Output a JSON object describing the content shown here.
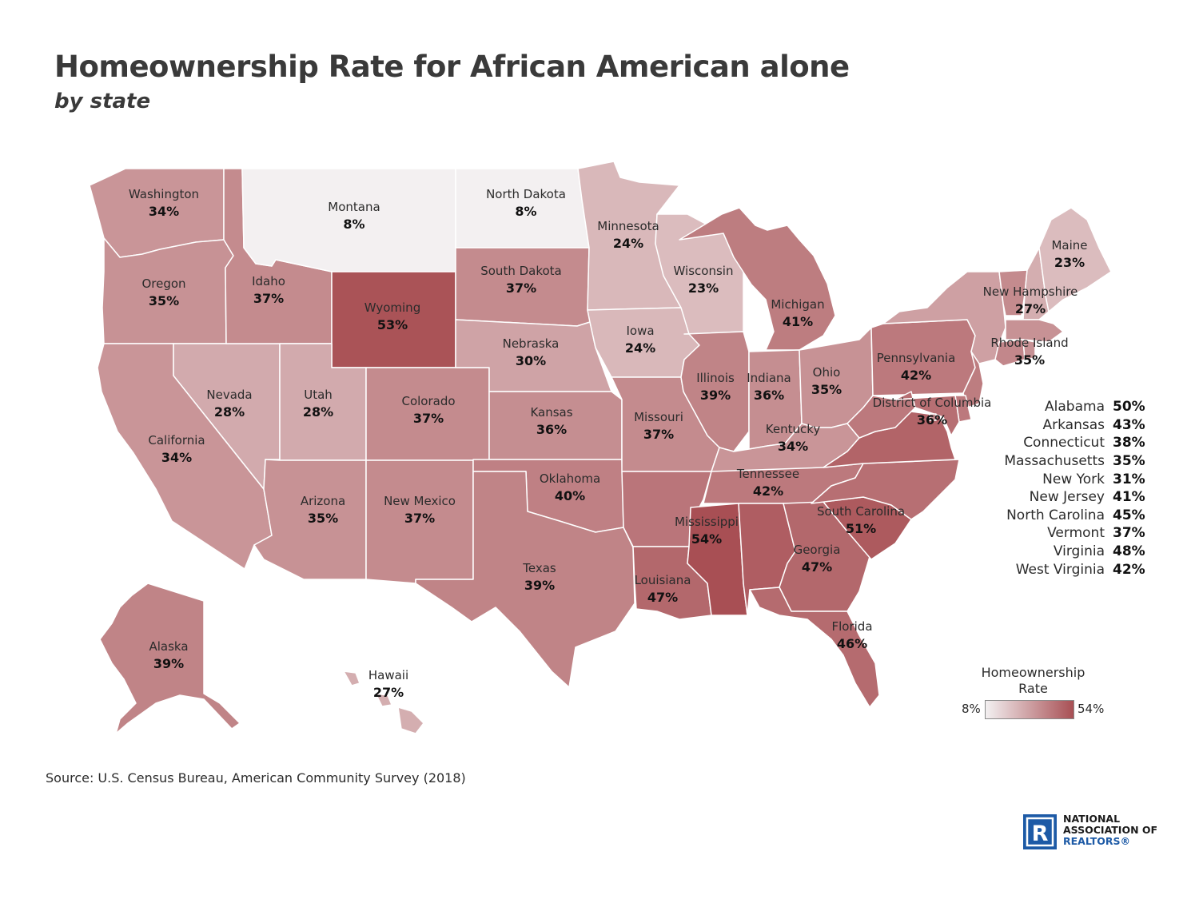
{
  "title": "Homeownership Rate for African American alone",
  "subtitle": "by state",
  "legend": {
    "title": "Homeownership Rate",
    "min_label": "8%",
    "max_label": "54%",
    "min": 8,
    "max": 54,
    "color_low": "#f3f0f1",
    "color_high": "#a84f54"
  },
  "states": {
    "WA": {
      "name": "Washington",
      "value": 34,
      "label": "34%"
    },
    "OR": {
      "name": "Oregon",
      "value": 35,
      "label": "35%"
    },
    "CA": {
      "name": "California",
      "value": 34,
      "label": "34%"
    },
    "NV": {
      "name": "Nevada",
      "value": 28,
      "label": "28%"
    },
    "ID": {
      "name": "Idaho",
      "value": 37,
      "label": "37%"
    },
    "MT": {
      "name": "Montana",
      "value": 8,
      "label": "8%"
    },
    "WY": {
      "name": "Wyoming",
      "value": 53,
      "label": "53%"
    },
    "UT": {
      "name": "Utah",
      "value": 28,
      "label": "28%"
    },
    "AZ": {
      "name": "Arizona",
      "value": 35,
      "label": "35%"
    },
    "CO": {
      "name": "Colorado",
      "value": 37,
      "label": "37%"
    },
    "NM": {
      "name": "New Mexico",
      "value": 37,
      "label": "37%"
    },
    "ND": {
      "name": "North Dakota",
      "value": 8,
      "label": "8%"
    },
    "SD": {
      "name": "South Dakota",
      "value": 37,
      "label": "37%"
    },
    "NE": {
      "name": "Nebraska",
      "value": 30,
      "label": "30%"
    },
    "KS": {
      "name": "Kansas",
      "value": 36,
      "label": "36%"
    },
    "OK": {
      "name": "Oklahoma",
      "value": 40,
      "label": "40%"
    },
    "TX": {
      "name": "Texas",
      "value": 39,
      "label": "39%"
    },
    "MN": {
      "name": "Minnesota",
      "value": 24,
      "label": "24%"
    },
    "IA": {
      "name": "Iowa",
      "value": 24,
      "label": "24%"
    },
    "MO": {
      "name": "Missouri",
      "value": 37,
      "label": "37%"
    },
    "AR": {
      "name": "Arkansas",
      "value": 43,
      "label": "43%"
    },
    "LA": {
      "name": "Louisiana",
      "value": 47,
      "label": "47%"
    },
    "WI": {
      "name": "Wisconsin",
      "value": 23,
      "label": "23%"
    },
    "IL": {
      "name": "Illinois",
      "value": 39,
      "label": "39%"
    },
    "MI": {
      "name": "Michigan",
      "value": 41,
      "label": "41%"
    },
    "IN": {
      "name": "Indiana",
      "value": 36,
      "label": "36%"
    },
    "OH": {
      "name": "Ohio",
      "value": 35,
      "label": "35%"
    },
    "KY": {
      "name": "Kentucky",
      "value": 34,
      "label": "34%"
    },
    "TN": {
      "name": "Tennessee",
      "value": 42,
      "label": "42%"
    },
    "MS": {
      "name": "Mississippi",
      "value": 54,
      "label": "54%"
    },
    "AL": {
      "name": "Alabama",
      "value": 50,
      "label": "50%"
    },
    "GA": {
      "name": "Georgia",
      "value": 47,
      "label": "47%"
    },
    "FL": {
      "name": "Florida",
      "value": 46,
      "label": "46%"
    },
    "SC": {
      "name": "South Carolina",
      "value": 51,
      "label": "51%"
    },
    "NC": {
      "name": "North Carolina",
      "value": 45,
      "label": "45%"
    },
    "VA": {
      "name": "Virginia",
      "value": 48,
      "label": "48%"
    },
    "WV": {
      "name": "West Virginia",
      "value": 42,
      "label": "42%"
    },
    "PA": {
      "name": "Pennsylvania",
      "value": 42,
      "label": "42%"
    },
    "NY": {
      "name": "New York",
      "value": 31,
      "label": "31%"
    },
    "VT": {
      "name": "Vermont",
      "value": 37,
      "label": "37%"
    },
    "NH": {
      "name": "New Hampshire",
      "value": 27,
      "label": "27%"
    },
    "ME": {
      "name": "Maine",
      "value": 23,
      "label": "23%"
    },
    "MA": {
      "name": "Massachusetts",
      "value": 35,
      "label": "35%"
    },
    "CT": {
      "name": "Connecticut",
      "value": 38,
      "label": "38%"
    },
    "RI": {
      "name": "Rhode Island",
      "value": 35,
      "label": "35%"
    },
    "NJ": {
      "name": "New Jersey",
      "value": 41,
      "label": "41%"
    },
    "DE": {
      "name": "",
      "value": 42,
      "label": ""
    },
    "MD": {
      "name": "",
      "value": 45,
      "label": ""
    },
    "DC": {
      "name": "District of Columbia",
      "value": 36,
      "label": "36%"
    },
    "AK": {
      "name": "Alaska",
      "value": 39,
      "label": "39%"
    },
    "HI": {
      "name": "Hawaii",
      "value": 27,
      "label": "27%"
    }
  },
  "side_list": [
    {
      "name": "Alabama",
      "value": "50%"
    },
    {
      "name": "Arkansas",
      "value": "43%"
    },
    {
      "name": "Connecticut",
      "value": "38%"
    },
    {
      "name": "Massachusetts",
      "value": "35%"
    },
    {
      "name": "New York",
      "value": "31%"
    },
    {
      "name": "New Jersey",
      "value": "41%"
    },
    {
      "name": "North Carolina",
      "value": "45%"
    },
    {
      "name": "Vermont",
      "value": "37%"
    },
    {
      "name": "Virginia",
      "value": "48%"
    },
    {
      "name": "West Virginia",
      "value": "42%"
    }
  ],
  "source": "Source: U.S. Census Bureau, American Community Survey (2018)",
  "logo": {
    "line1": "NATIONAL",
    "line2": "ASSOCIATION OF",
    "line3": "REALTORS®",
    "mark": "R"
  }
}
